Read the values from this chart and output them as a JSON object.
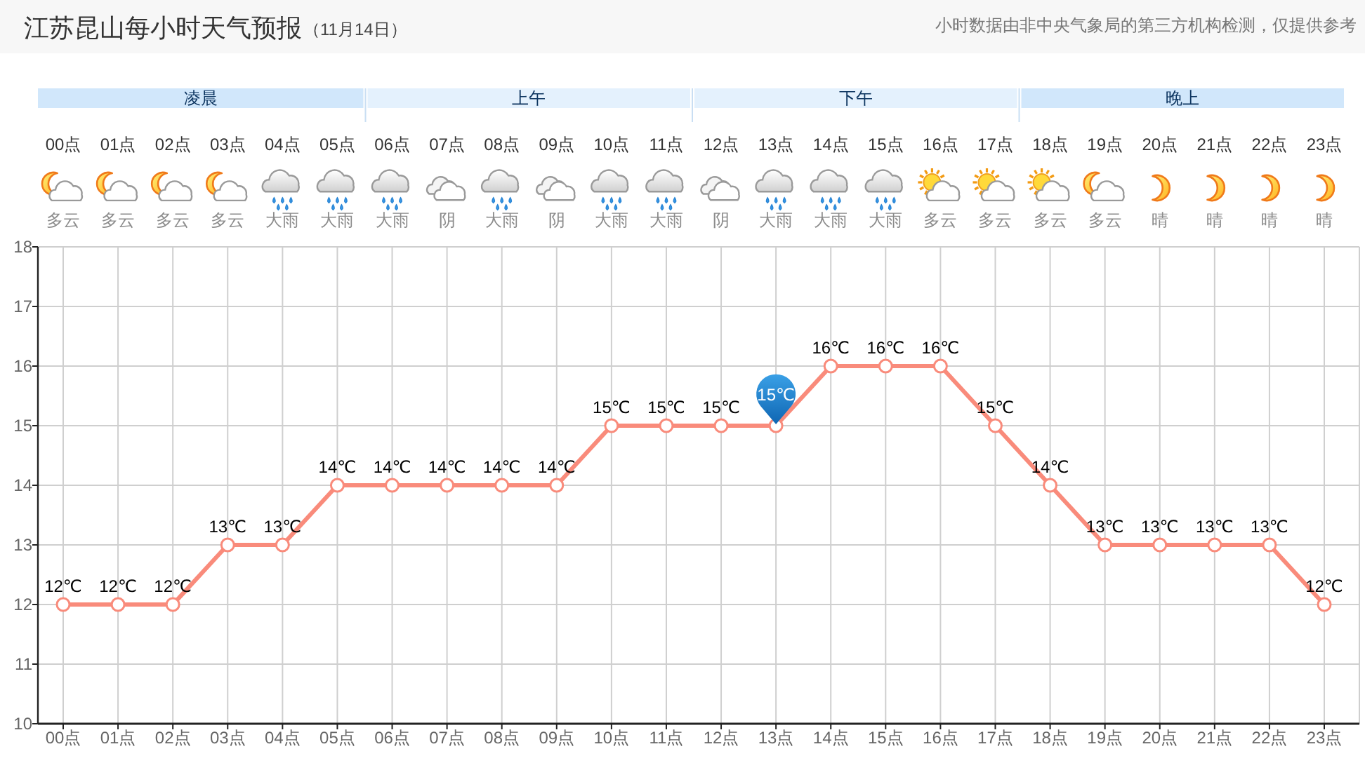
{
  "chart_data": {
    "type": "line",
    "title": "江苏昆山每小时天气预报",
    "subtitle": "（11月14日）",
    "categories": [
      "00点",
      "01点",
      "02点",
      "03点",
      "04点",
      "05点",
      "06点",
      "07点",
      "08点",
      "09点",
      "10点",
      "11点",
      "12点",
      "13点",
      "14点",
      "15点",
      "16点",
      "17点",
      "18点",
      "19点",
      "20点",
      "21点",
      "22点",
      "23点"
    ],
    "series": [
      {
        "color": "#f98b7b",
        "values": [
          12,
          12,
          12,
          13,
          13,
          14,
          14,
          14,
          14,
          14,
          15,
          15,
          15,
          15,
          16,
          16,
          16,
          15,
          14,
          13,
          13,
          13,
          13,
          12
        ],
        "value_labels": [
          "12℃",
          "12℃",
          "12℃",
          "13℃",
          "13℃",
          "14℃",
          "14℃",
          "14℃",
          "14℃",
          "14℃",
          "15℃",
          "15℃",
          "15℃",
          null,
          "16℃",
          "16℃",
          "16℃",
          "15℃",
          "14℃",
          "13℃",
          "13℃",
          "13℃",
          "13℃",
          "12℃"
        ]
      }
    ],
    "ylim": [
      10,
      18
    ],
    "yticks": [
      10,
      11,
      12,
      13,
      14,
      15,
      16,
      17,
      18
    ],
    "grid": true,
    "marker": "circle",
    "line_style": "solid",
    "annotations": [
      "小时数据由非中央气象局的第三方机构检测，仅提供参考",
      {
        "text": "15℃",
        "x": "13点",
        "y": 15
      },
      "凌晨",
      "上午",
      "下午",
      "晚上",
      "多云",
      "多云",
      "多云",
      "多云",
      "大雨",
      "大雨",
      "大雨",
      "阴",
      "大雨",
      "阴",
      "大雨",
      "大雨",
      "阴",
      "大雨",
      "大雨",
      "大雨",
      "多云",
      "多云",
      "多云",
      "多云",
      "晴",
      "晴",
      "晴",
      "晴"
    ]
  }
}
